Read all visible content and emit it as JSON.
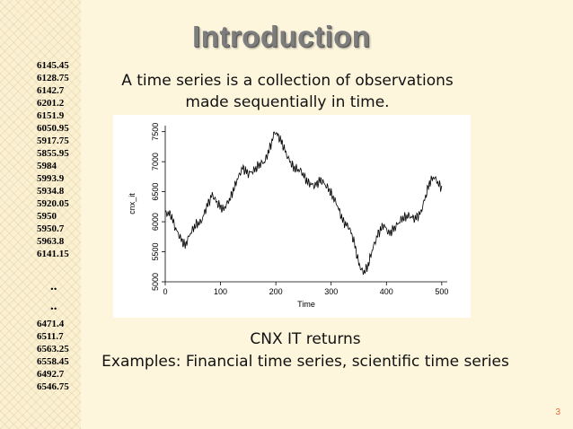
{
  "slide": {
    "title": "Introduction",
    "intro_line1": "A time series is a collection of observations",
    "intro_line2": "made sequentially in time.",
    "caption": "CNX IT returns",
    "examples": "Examples: Financial time series, scientific time series",
    "page_number": "3",
    "numbers_top": [
      "6145.45",
      "6128.75",
      "6142.7",
      "6201.2",
      "6151.9",
      "6050.95",
      "5917.75",
      "5855.95",
      "5984",
      "5993.9",
      "5934.8",
      "5920.05",
      "5950",
      "5950.7",
      "5963.8",
      "6141.15"
    ],
    "ellipsis": [
      "..",
      ".."
    ],
    "numbers_bottom": [
      "6471.4",
      "6511.7",
      "6563.25",
      "6558.45",
      "6492.7",
      "6546.75"
    ],
    "colors": {
      "background": "#fdf6dc",
      "title": "#7d7d7d",
      "page_number": "#e86a3a"
    }
  },
  "chart_data": {
    "type": "line",
    "title": "",
    "xlabel": "Time",
    "ylabel": "cnx_it",
    "xlim": [
      0,
      510
    ],
    "ylim": [
      5000,
      7600
    ],
    "x_ticks": [
      "0",
      "100",
      "200",
      "300",
      "400",
      "500"
    ],
    "y_ticks": [
      "5000",
      "5500",
      "6000",
      "6500",
      "7000",
      "7500"
    ],
    "grid": false,
    "anchors": [
      [
        1,
        6150
      ],
      [
        10,
        6120
      ],
      [
        18,
        5900
      ],
      [
        28,
        5720
      ],
      [
        36,
        5600
      ],
      [
        45,
        5800
      ],
      [
        55,
        5950
      ],
      [
        65,
        6000
      ],
      [
        75,
        6250
      ],
      [
        85,
        6450
      ],
      [
        95,
        6300
      ],
      [
        105,
        6200
      ],
      [
        118,
        6400
      ],
      [
        130,
        6700
      ],
      [
        140,
        6900
      ],
      [
        150,
        6800
      ],
      [
        160,
        6850
      ],
      [
        170,
        6950
      ],
      [
        180,
        7000
      ],
      [
        190,
        7250
      ],
      [
        198,
        7500
      ],
      [
        205,
        7420
      ],
      [
        212,
        7300
      ],
      [
        220,
        7100
      ],
      [
        232,
        6900
      ],
      [
        245,
        6850
      ],
      [
        258,
        6650
      ],
      [
        270,
        6600
      ],
      [
        282,
        6700
      ],
      [
        295,
        6550
      ],
      [
        310,
        6300
      ],
      [
        322,
        6000
      ],
      [
        333,
        5900
      ],
      [
        342,
        5650
      ],
      [
        350,
        5300
      ],
      [
        358,
        5150
      ],
      [
        366,
        5250
      ],
      [
        375,
        5550
      ],
      [
        385,
        5800
      ],
      [
        395,
        5950
      ],
      [
        405,
        5800
      ],
      [
        415,
        5900
      ],
      [
        428,
        6050
      ],
      [
        440,
        6100
      ],
      [
        452,
        6050
      ],
      [
        462,
        6150
      ],
      [
        470,
        6400
      ],
      [
        478,
        6650
      ],
      [
        486,
        6750
      ],
      [
        493,
        6650
      ],
      [
        500,
        6550
      ]
    ]
  }
}
